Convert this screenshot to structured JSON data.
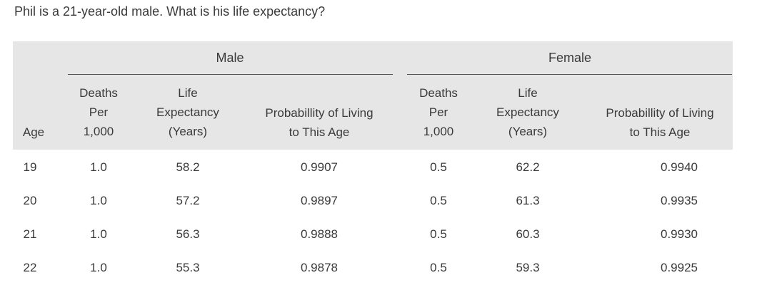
{
  "question": "Phil is a 21-year-old male. What is his life expectancy?",
  "table": {
    "groups": {
      "male": "Male",
      "female": "Female"
    },
    "age_header": "Age",
    "columns": {
      "deaths": [
        "Deaths",
        "Per",
        "1,000"
      ],
      "life": [
        "Life",
        "Expectancy",
        "(Years)"
      ],
      "prob": [
        "Probabillity of Living",
        "to This Age"
      ]
    },
    "rows": [
      {
        "age": "19",
        "m_deaths": "1.0",
        "m_life": "58.2",
        "m_prob": "0.9907",
        "f_deaths": "0.5",
        "f_life": "62.2",
        "f_prob": "0.9940"
      },
      {
        "age": "20",
        "m_deaths": "1.0",
        "m_life": "57.2",
        "m_prob": "0.9897",
        "f_deaths": "0.5",
        "f_life": "61.3",
        "f_prob": "0.9935"
      },
      {
        "age": "21",
        "m_deaths": "1.0",
        "m_life": "56.3",
        "m_prob": "0.9888",
        "f_deaths": "0.5",
        "f_life": "60.3",
        "f_prob": "0.9930"
      },
      {
        "age": "22",
        "m_deaths": "1.0",
        "m_life": "55.3",
        "m_prob": "0.9878",
        "f_deaths": "0.5",
        "f_life": "59.3",
        "f_prob": "0.9925"
      }
    ]
  }
}
